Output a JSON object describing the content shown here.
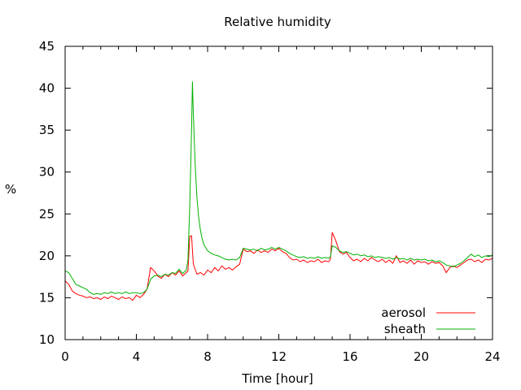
{
  "chart_data": {
    "type": "line",
    "title": "Relative humidity",
    "xlabel": "Time [hour]",
    "ylabel": "%",
    "xlim": [
      0,
      24
    ],
    "ylim": [
      10,
      45
    ],
    "x_ticks": [
      0,
      4,
      8,
      12,
      16,
      20,
      24
    ],
    "y_ticks": [
      10,
      15,
      20,
      25,
      30,
      35,
      40,
      45
    ],
    "grid": false,
    "legend_position": "bottom-right",
    "series": [
      {
        "name": "aerosol",
        "color": "#ff0000",
        "points": [
          [
            0.0,
            17.0
          ],
          [
            0.2,
            16.6
          ],
          [
            0.4,
            15.8
          ],
          [
            0.6,
            15.5
          ],
          [
            0.8,
            15.3
          ],
          [
            1.0,
            15.2
          ],
          [
            1.2,
            15.0
          ],
          [
            1.4,
            15.1
          ],
          [
            1.6,
            14.9
          ],
          [
            1.8,
            15.0
          ],
          [
            2.0,
            14.8
          ],
          [
            2.2,
            15.1
          ],
          [
            2.4,
            14.9
          ],
          [
            2.6,
            15.2
          ],
          [
            2.8,
            15.0
          ],
          [
            3.0,
            14.8
          ],
          [
            3.2,
            15.1
          ],
          [
            3.4,
            14.9
          ],
          [
            3.6,
            15.0
          ],
          [
            3.8,
            14.7
          ],
          [
            4.0,
            15.3
          ],
          [
            4.2,
            15.0
          ],
          [
            4.4,
            15.4
          ],
          [
            4.6,
            16.0
          ],
          [
            4.8,
            18.6
          ],
          [
            5.0,
            18.2
          ],
          [
            5.2,
            17.6
          ],
          [
            5.4,
            17.3
          ],
          [
            5.6,
            17.8
          ],
          [
            5.8,
            17.5
          ],
          [
            6.0,
            18.0
          ],
          [
            6.2,
            17.7
          ],
          [
            6.4,
            18.2
          ],
          [
            6.6,
            17.6
          ],
          [
            6.8,
            18.0
          ],
          [
            6.9,
            18.2
          ],
          [
            7.0,
            22.3
          ],
          [
            7.1,
            22.4
          ],
          [
            7.2,
            19.0
          ],
          [
            7.4,
            17.8
          ],
          [
            7.6,
            18.0
          ],
          [
            7.8,
            17.7
          ],
          [
            8.0,
            18.3
          ],
          [
            8.2,
            18.0
          ],
          [
            8.4,
            18.6
          ],
          [
            8.6,
            18.2
          ],
          [
            8.8,
            18.8
          ],
          [
            9.0,
            18.4
          ],
          [
            9.2,
            18.6
          ],
          [
            9.4,
            18.3
          ],
          [
            9.6,
            18.7
          ],
          [
            9.8,
            19.0
          ],
          [
            10.0,
            20.8
          ],
          [
            10.2,
            20.5
          ],
          [
            10.4,
            20.6
          ],
          [
            10.6,
            20.3
          ],
          [
            10.8,
            20.7
          ],
          [
            11.0,
            20.4
          ],
          [
            11.2,
            20.6
          ],
          [
            11.4,
            20.4
          ],
          [
            11.6,
            20.8
          ],
          [
            11.8,
            20.6
          ],
          [
            12.0,
            20.9
          ],
          [
            12.2,
            20.5
          ],
          [
            12.4,
            20.3
          ],
          [
            12.6,
            19.8
          ],
          [
            12.8,
            19.5
          ],
          [
            13.0,
            19.6
          ],
          [
            13.2,
            19.3
          ],
          [
            13.4,
            19.5
          ],
          [
            13.6,
            19.2
          ],
          [
            13.8,
            19.4
          ],
          [
            14.0,
            19.3
          ],
          [
            14.2,
            19.6
          ],
          [
            14.4,
            19.2
          ],
          [
            14.6,
            19.4
          ],
          [
            14.8,
            19.3
          ],
          [
            14.9,
            19.6
          ],
          [
            15.0,
            22.8
          ],
          [
            15.2,
            21.8
          ],
          [
            15.4,
            20.5
          ],
          [
            15.6,
            20.2
          ],
          [
            15.8,
            20.4
          ],
          [
            16.0,
            19.8
          ],
          [
            16.2,
            19.4
          ],
          [
            16.4,
            19.6
          ],
          [
            16.6,
            19.3
          ],
          [
            16.8,
            19.7
          ],
          [
            17.0,
            19.4
          ],
          [
            17.2,
            19.8
          ],
          [
            17.4,
            19.5
          ],
          [
            17.6,
            19.3
          ],
          [
            17.8,
            19.6
          ],
          [
            18.0,
            19.2
          ],
          [
            18.2,
            19.5
          ],
          [
            18.4,
            19.1
          ],
          [
            18.6,
            20.0
          ],
          [
            18.8,
            19.2
          ],
          [
            19.0,
            19.4
          ],
          [
            19.2,
            19.1
          ],
          [
            19.4,
            19.5
          ],
          [
            19.6,
            19.0
          ],
          [
            19.8,
            19.4
          ],
          [
            20.0,
            19.2
          ],
          [
            20.2,
            19.3
          ],
          [
            20.4,
            19.0
          ],
          [
            20.6,
            19.3
          ],
          [
            20.8,
            19.1
          ],
          [
            21.0,
            19.2
          ],
          [
            21.2,
            18.8
          ],
          [
            21.4,
            18.0
          ],
          [
            21.6,
            18.6
          ],
          [
            21.8,
            18.8
          ],
          [
            22.0,
            18.6
          ],
          [
            22.2,
            18.9
          ],
          [
            22.4,
            19.2
          ],
          [
            22.6,
            19.5
          ],
          [
            22.8,
            19.6
          ],
          [
            23.0,
            19.3
          ],
          [
            23.2,
            19.5
          ],
          [
            23.4,
            19.2
          ],
          [
            23.6,
            19.6
          ],
          [
            23.8,
            19.5
          ],
          [
            24.0,
            19.7
          ]
        ]
      },
      {
        "name": "sheath",
        "color": "#00b000",
        "points": [
          [
            0.0,
            18.2
          ],
          [
            0.2,
            18.0
          ],
          [
            0.4,
            17.3
          ],
          [
            0.6,
            16.6
          ],
          [
            0.8,
            16.4
          ],
          [
            1.0,
            16.2
          ],
          [
            1.2,
            16.0
          ],
          [
            1.4,
            15.6
          ],
          [
            1.6,
            15.4
          ],
          [
            1.8,
            15.5
          ],
          [
            2.0,
            15.4
          ],
          [
            2.2,
            15.6
          ],
          [
            2.4,
            15.5
          ],
          [
            2.6,
            15.7
          ],
          [
            2.8,
            15.5
          ],
          [
            3.0,
            15.6
          ],
          [
            3.2,
            15.5
          ],
          [
            3.4,
            15.7
          ],
          [
            3.6,
            15.5
          ],
          [
            3.8,
            15.6
          ],
          [
            4.0,
            15.6
          ],
          [
            4.2,
            15.5
          ],
          [
            4.4,
            15.6
          ],
          [
            4.6,
            16.0
          ],
          [
            4.8,
            17.2
          ],
          [
            5.0,
            17.6
          ],
          [
            5.2,
            17.7
          ],
          [
            5.4,
            17.5
          ],
          [
            5.6,
            17.8
          ],
          [
            5.8,
            17.7
          ],
          [
            6.0,
            18.0
          ],
          [
            6.2,
            17.9
          ],
          [
            6.4,
            18.4
          ],
          [
            6.6,
            17.9
          ],
          [
            6.8,
            18.3
          ],
          [
            6.9,
            19.5
          ],
          [
            7.0,
            26.0
          ],
          [
            7.1,
            35.0
          ],
          [
            7.15,
            40.8
          ],
          [
            7.2,
            37.0
          ],
          [
            7.3,
            31.0
          ],
          [
            7.4,
            27.0
          ],
          [
            7.5,
            24.5
          ],
          [
            7.6,
            23.0
          ],
          [
            7.7,
            22.0
          ],
          [
            7.8,
            21.3
          ],
          [
            8.0,
            20.6
          ],
          [
            8.2,
            20.3
          ],
          [
            8.4,
            20.1
          ],
          [
            8.6,
            20.0
          ],
          [
            8.8,
            19.8
          ],
          [
            9.0,
            19.6
          ],
          [
            9.2,
            19.5
          ],
          [
            9.4,
            19.6
          ],
          [
            9.6,
            19.5
          ],
          [
            9.8,
            19.8
          ],
          [
            10.0,
            20.9
          ],
          [
            10.2,
            20.8
          ],
          [
            10.4,
            20.7
          ],
          [
            10.6,
            20.8
          ],
          [
            10.8,
            20.6
          ],
          [
            11.0,
            20.9
          ],
          [
            11.2,
            20.7
          ],
          [
            11.4,
            20.8
          ],
          [
            11.6,
            21.0
          ],
          [
            11.8,
            20.8
          ],
          [
            12.0,
            21.0
          ],
          [
            12.2,
            20.8
          ],
          [
            12.4,
            20.6
          ],
          [
            12.6,
            20.3
          ],
          [
            12.8,
            20.1
          ],
          [
            13.0,
            19.9
          ],
          [
            13.2,
            19.8
          ],
          [
            13.4,
            19.9
          ],
          [
            13.6,
            19.7
          ],
          [
            13.8,
            19.8
          ],
          [
            14.0,
            19.7
          ],
          [
            14.2,
            19.9
          ],
          [
            14.4,
            19.7
          ],
          [
            14.6,
            19.8
          ],
          [
            14.8,
            19.7
          ],
          [
            14.9,
            19.9
          ],
          [
            15.0,
            21.2
          ],
          [
            15.2,
            21.0
          ],
          [
            15.4,
            20.6
          ],
          [
            15.6,
            20.4
          ],
          [
            15.8,
            20.5
          ],
          [
            16.0,
            20.3
          ],
          [
            16.2,
            20.1
          ],
          [
            16.4,
            20.2
          ],
          [
            16.6,
            20.0
          ],
          [
            16.8,
            20.1
          ],
          [
            17.0,
            19.9
          ],
          [
            17.2,
            20.0
          ],
          [
            17.4,
            19.8
          ],
          [
            17.6,
            19.9
          ],
          [
            17.8,
            19.8
          ],
          [
            18.0,
            19.7
          ],
          [
            18.2,
            19.8
          ],
          [
            18.4,
            19.6
          ],
          [
            18.6,
            19.8
          ],
          [
            18.8,
            19.6
          ],
          [
            19.0,
            19.7
          ],
          [
            19.2,
            19.5
          ],
          [
            19.4,
            19.7
          ],
          [
            19.6,
            19.5
          ],
          [
            19.8,
            19.6
          ],
          [
            20.0,
            19.5
          ],
          [
            20.2,
            19.6
          ],
          [
            20.4,
            19.4
          ],
          [
            20.6,
            19.5
          ],
          [
            20.8,
            19.3
          ],
          [
            21.0,
            19.4
          ],
          [
            21.2,
            19.2
          ],
          [
            21.4,
            18.9
          ],
          [
            21.6,
            18.8
          ],
          [
            21.8,
            18.7
          ],
          [
            22.0,
            18.9
          ],
          [
            22.2,
            19.1
          ],
          [
            22.4,
            19.4
          ],
          [
            22.6,
            19.8
          ],
          [
            22.8,
            20.2
          ],
          [
            23.0,
            19.9
          ],
          [
            23.2,
            20.1
          ],
          [
            23.4,
            19.8
          ],
          [
            23.6,
            20.0
          ],
          [
            23.8,
            19.9
          ],
          [
            24.0,
            20.1
          ]
        ]
      }
    ]
  }
}
